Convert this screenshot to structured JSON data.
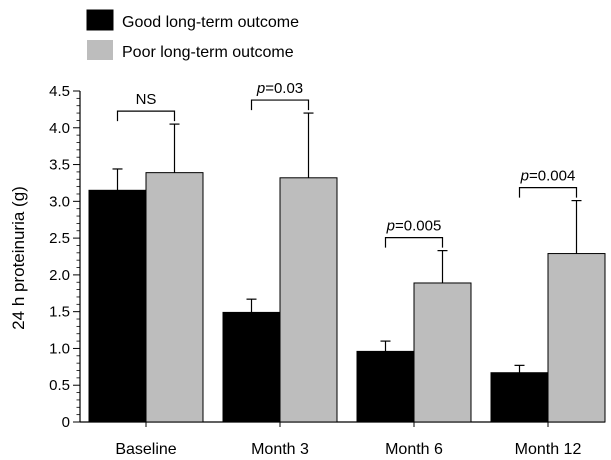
{
  "chart_data": {
    "type": "bar",
    "categories": [
      "Baseline",
      "Month 3",
      "Month 6",
      "Month 12"
    ],
    "series": [
      {
        "name": "Good long-term outcome",
        "color": "#000000",
        "values": [
          3.15,
          1.49,
          0.96,
          0.67
        ],
        "error_upper": [
          3.44,
          1.67,
          1.1,
          0.77
        ]
      },
      {
        "name": "Poor long-term outcome",
        "color": "#bdbdbd",
        "values": [
          3.39,
          3.32,
          1.89,
          2.29
        ],
        "error_upper": [
          4.05,
          4.2,
          2.33,
          3.01
        ]
      }
    ],
    "ylabel": "24 h proteinuria (g)",
    "xlabel": "",
    "ylim": [
      0,
      4.5
    ],
    "yticks": [
      "0",
      "0.5",
      "1.0",
      "1.5",
      "2.0",
      "2.5",
      "3.0",
      "3.5",
      "4.0",
      "4.5"
    ],
    "legend_position": "top-left",
    "grid": false,
    "annotations": [
      {
        "category": "Baseline",
        "label": "NS"
      },
      {
        "category": "Month 3",
        "label": "p=0.03"
      },
      {
        "category": "Month 6",
        "label": "p=0.005"
      },
      {
        "category": "Month 12",
        "label": "p=0.004"
      }
    ]
  }
}
